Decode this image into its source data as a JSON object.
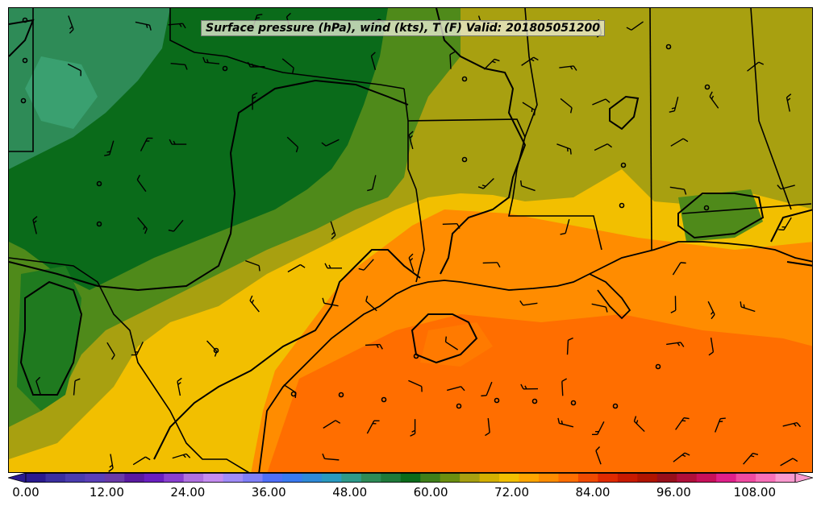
{
  "map": {
    "title": "Surface pressure (hPa), wind (kts), T (F) Valid: 201805051200",
    "colors": {
      "ocean_hot": "#ff6e00",
      "ocean_warm": "#ff8c00",
      "orange": "#ffa500",
      "yellow": "#f2bf00",
      "olive": "#a8a010",
      "light_green": "#4f8a1a",
      "green": "#1f7a1f",
      "dark_green": "#0a6b1a",
      "teal_green": "#2e8b57",
      "sea_green": "#3aa070",
      "coast_line": "#000000",
      "state_line": "#000000"
    },
    "colorbar": {
      "min": 0,
      "max": 114,
      "tick_labels": [
        "0.00",
        "12.00",
        "24.00",
        "36.00",
        "48.00",
        "60.00",
        "72.00",
        "84.00",
        "96.00",
        "108.00"
      ],
      "tick_values": [
        0,
        12,
        24,
        36,
        48,
        60,
        72,
        84,
        96,
        108
      ],
      "colors": [
        "#2a1a8f",
        "#3b2fa0",
        "#4a3caf",
        "#5a3fb8",
        "#6a3aa8",
        "#5a1aa0",
        "#6a1fc0",
        "#8a3fd0",
        "#b070e0",
        "#c58cf0",
        "#a08cf8",
        "#7f7ff8",
        "#4f6ff8",
        "#3a7af0",
        "#2f8ad8",
        "#2a9ac0",
        "#2e9a8a",
        "#2e8b57",
        "#1f7a3a",
        "#0a6b1a",
        "#3f7f1a",
        "#6b8f10",
        "#a8a010",
        "#d4b000",
        "#f2bf00",
        "#ffa500",
        "#ff8c00",
        "#ff6e00",
        "#f04a00",
        "#e02a00",
        "#c81a00",
        "#b01400",
        "#980f1a",
        "#b00f3a",
        "#c8105a",
        "#e0208a",
        "#f04aa0",
        "#f870b8",
        "#fa9ad0"
      ]
    },
    "station_circles": 24,
    "wind_barbs": 120
  }
}
